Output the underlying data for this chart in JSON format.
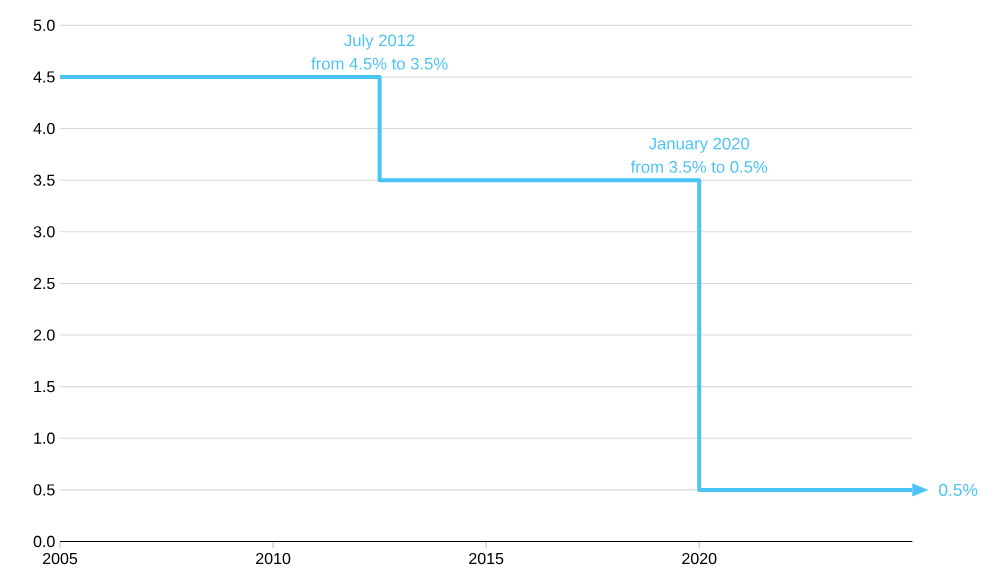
{
  "chart_data": {
    "type": "step",
    "x": [
      2005,
      2012.5,
      2020,
      2025
    ],
    "series": [
      {
        "color": "#4cc3f5",
        "values": [
          4.5,
          3.5,
          0.5,
          0.5
        ]
      }
    ],
    "xlim": [
      2005,
      2025
    ],
    "xticks": [
      2005,
      2010,
      2015,
      2020
    ],
    "ylim": [
      0,
      5
    ],
    "yticks": [
      {
        "value": 0,
        "label": "0.0"
      },
      0.5,
      {
        "value": 1,
        "label": "1.0"
      },
      1.5,
      {
        "value": 2,
        "label": "2.0"
      },
      2.5,
      {
        "value": 3,
        "label": "3.0"
      },
      3.5,
      {
        "value": 4,
        "label": "4.0"
      },
      4.5,
      {
        "value": 5,
        "label": "5.0"
      }
    ],
    "grid": "y",
    "marker": "none",
    "line_style": "solid",
    "annotations": [
      {
        "text": "July 2012",
        "x": 2012.5,
        "y": 4.5
      },
      {
        "text": "from 4.5% to 3.5%",
        "x": 2012.5,
        "y": 4.5
      },
      {
        "text": "January 2020",
        "x": 2020,
        "y": 3.5
      },
      {
        "text": "from 3.5% to 0.5%",
        "x": 2020,
        "y": 3.5
      },
      {
        "text": "0.5%",
        "x": 2025,
        "y": 0.5
      }
    ]
  }
}
